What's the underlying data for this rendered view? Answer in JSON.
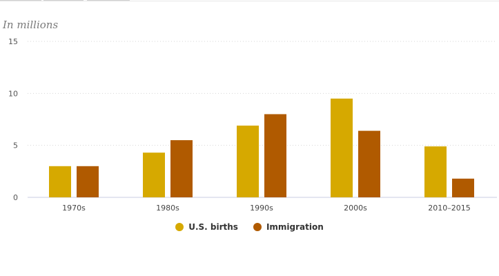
{
  "units_label": "In millions",
  "chart_data": {
    "type": "bar",
    "categories": [
      "1970s",
      "1980s",
      "1990s",
      "2000s",
      "2010–2015"
    ],
    "series": [
      {
        "name": "U.S. births",
        "color": "#d6a900",
        "values": [
          3.0,
          4.3,
          6.9,
          9.5,
          4.9
        ]
      },
      {
        "name": "Immigration",
        "color": "#b05a00",
        "values": [
          3.0,
          5.5,
          8.0,
          6.4,
          1.8
        ]
      }
    ],
    "ylim": [
      0,
      15
    ],
    "yticks": [
      0,
      5,
      10,
      15
    ],
    "grid": true,
    "legend_position": "bottom-center",
    "xlabel": "",
    "ylabel": ""
  }
}
